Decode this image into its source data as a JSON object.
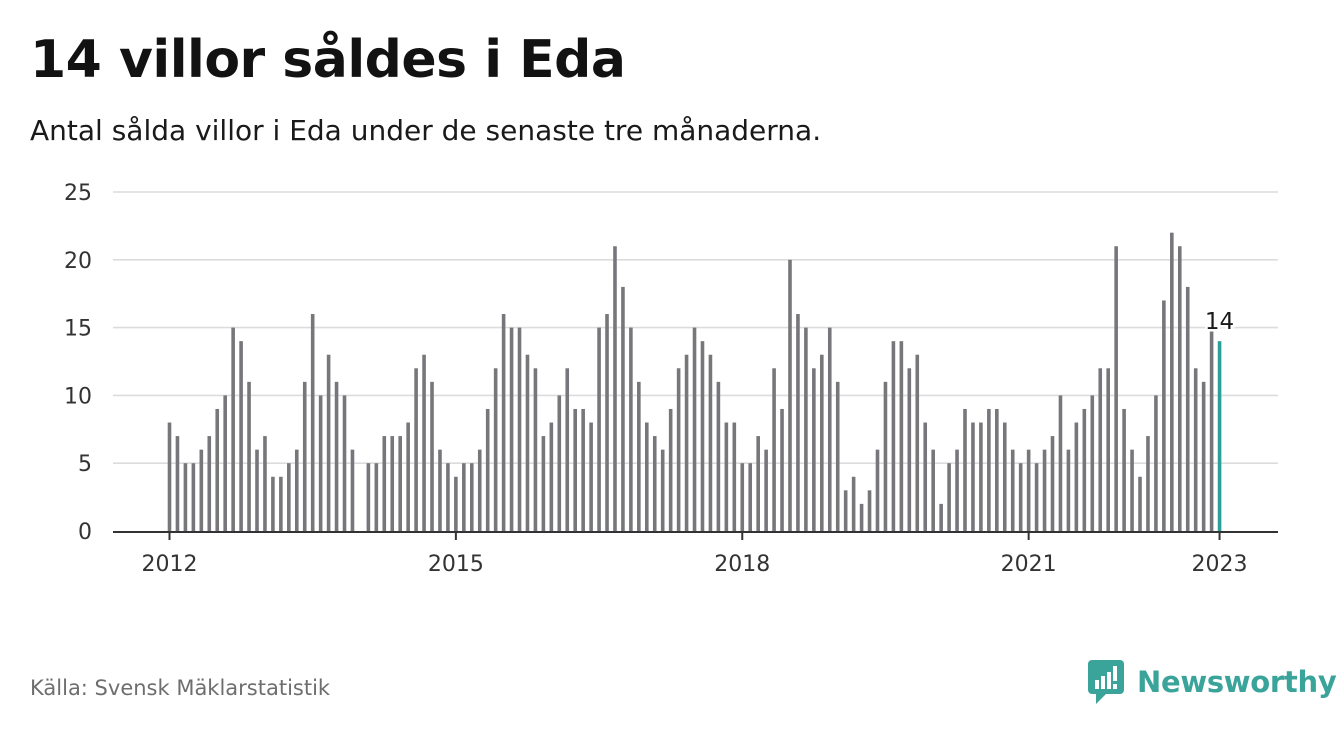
{
  "header": {
    "title": "14 villor såldes i Eda",
    "subtitle": "Antal sålda villor i Eda under de senaste tre månaderna."
  },
  "footer": {
    "source": "Källa: Svensk Mäklarstatistik",
    "brand": "Newsworthy",
    "brand_icon": "newsworthy-logo-icon"
  },
  "colors": {
    "bar": "#77767b",
    "highlight": "#2aa198",
    "grid": "#dcdcdc",
    "axis": "#333333",
    "brand": "#3aa39a"
  },
  "chart_data": {
    "type": "bar",
    "title": "14 villor såldes i Eda",
    "subtitle": "Antal sålda villor i Eda under de senaste tre månaderna.",
    "xlabel": "",
    "ylabel": "",
    "x_unit": "month",
    "start": "2012-01",
    "end": "2023-01",
    "ylim": [
      0,
      25
    ],
    "y_ticks": [
      0,
      5,
      10,
      15,
      20,
      25
    ],
    "x_ticks": [
      "2012",
      "2015",
      "2018",
      "2021",
      "2023"
    ],
    "grid": true,
    "legend": "none",
    "highlight_last": true,
    "last_value_label": "14",
    "values": [
      8,
      7,
      5,
      5,
      6,
      7,
      9,
      10,
      15,
      14,
      11,
      6,
      7,
      4,
      4,
      5,
      6,
      11,
      16,
      10,
      13,
      11,
      10,
      6,
      null,
      5,
      5,
      7,
      7,
      7,
      8,
      12,
      13,
      11,
      6,
      5,
      4,
      5,
      5,
      6,
      9,
      12,
      16,
      15,
      15,
      13,
      12,
      7,
      8,
      10,
      12,
      9,
      9,
      8,
      15,
      16,
      21,
      18,
      15,
      11,
      8,
      7,
      6,
      9,
      12,
      13,
      15,
      14,
      13,
      11,
      8,
      8,
      5,
      5,
      7,
      6,
      12,
      9,
      20,
      16,
      15,
      12,
      13,
      15,
      11,
      3,
      4,
      2,
      3,
      6,
      11,
      14,
      14,
      12,
      13,
      8,
      6,
      2,
      5,
      6,
      9,
      8,
      8,
      9,
      9,
      8,
      6,
      5,
      6,
      5,
      6,
      7,
      10,
      6,
      8,
      9,
      10,
      12,
      12,
      21,
      9,
      6,
      4,
      7,
      10,
      17,
      22,
      21,
      18,
      12,
      11,
      15,
      14
    ]
  }
}
